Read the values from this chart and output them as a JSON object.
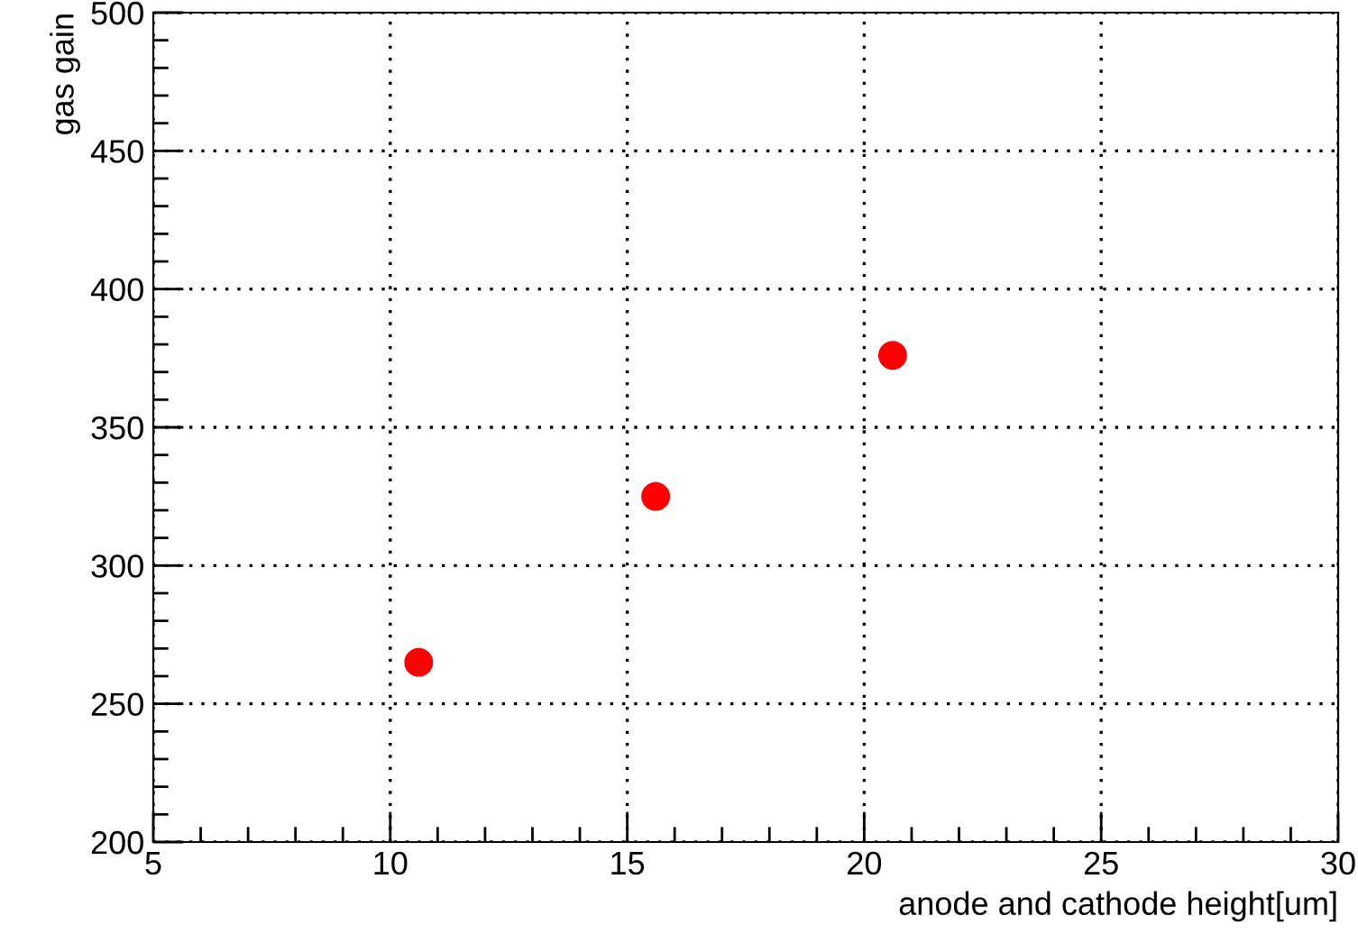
{
  "chart_data": {
    "type": "scatter",
    "xlabel": "anode and cathode height[um]",
    "ylabel": "gas gain",
    "x": [
      10.6,
      15.6,
      20.6
    ],
    "series": [
      {
        "color": "#ff0000",
        "values": [
          265,
          325,
          376
        ]
      }
    ],
    "xlim": [
      5,
      30
    ],
    "xticks": [
      5,
      10,
      15,
      20,
      25,
      30
    ],
    "ylim": [
      200,
      500
    ],
    "yticks": [
      200,
      250,
      300,
      350,
      400,
      450,
      500
    ],
    "grid": true,
    "marker": "circle",
    "legend": false
  }
}
